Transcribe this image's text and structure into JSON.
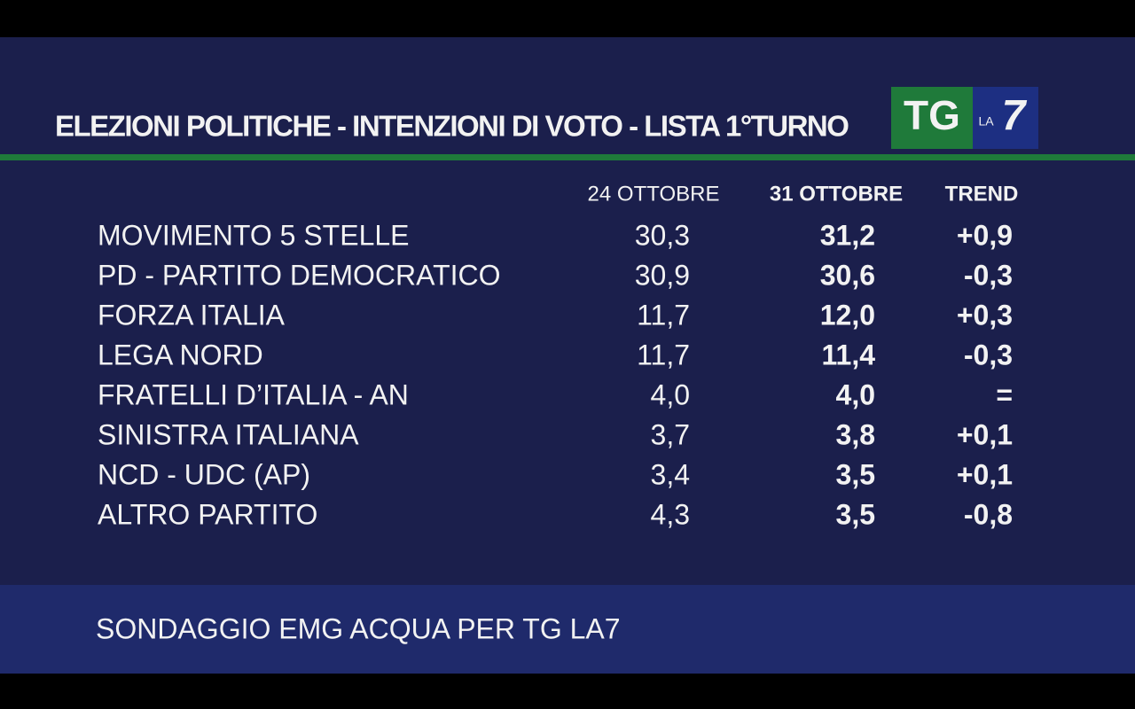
{
  "header": {
    "title": "ELEZIONI POLITICHE - INTENZIONI DI VOTO - LISTA 1°TURNO"
  },
  "logo": {
    "tg": "TG",
    "la": "LA",
    "seven": "7"
  },
  "table": {
    "columns": [
      "24 OTTOBRE",
      "31 OTTOBRE",
      "TREND"
    ],
    "rows": [
      [
        "MOVIMENTO 5 STELLE",
        "30,3",
        "31,2",
        "+0,9"
      ],
      [
        "PD - PARTITO DEMOCRATICO",
        "30,9",
        "30,6",
        "-0,3"
      ],
      [
        "FORZA ITALIA",
        "11,7",
        "12,0",
        "+0,3"
      ],
      [
        "LEGA NORD",
        "11,7",
        "11,4",
        "-0,3"
      ],
      [
        "FRATELLI D’ITALIA - AN",
        "4,0",
        "4,0",
        "="
      ],
      [
        "SINISTRA ITALIANA",
        "3,7",
        "3,8",
        "+0,1"
      ],
      [
        "NCD - UDC (AP)",
        "3,4",
        "3,5",
        "+0,1"
      ],
      [
        "ALTRO PARTITO",
        "4,3",
        "3,5",
        "-0,8"
      ]
    ]
  },
  "footer": {
    "source": "SONDAGGIO EMG ACQUA PER TG LA7"
  }
}
